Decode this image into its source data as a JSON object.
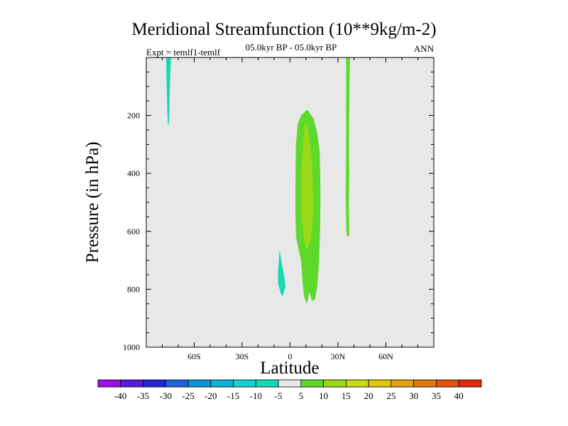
{
  "chart_data": {
    "type": "contour",
    "title": "Meridional Streamfunction (10**9kg/m-2)",
    "subtitle": "05.0kyr BP - 05.0kyr BP",
    "left_label": "Expt = temlf1-temlf",
    "right_label": "ANN",
    "xlabel": "Latitude",
    "ylabel": "Pressure (in hPa)",
    "xlim": [
      -90,
      90
    ],
    "ylim": [
      1000,
      0
    ],
    "x_ticks": [
      {
        "value": -60,
        "label": "60S"
      },
      {
        "value": -30,
        "label": "30S"
      },
      {
        "value": 0,
        "label": "0"
      },
      {
        "value": 30,
        "label": "30N"
      },
      {
        "value": 60,
        "label": "60N"
      }
    ],
    "y_ticks": [
      {
        "value": 200,
        "label": "200"
      },
      {
        "value": 400,
        "label": "400"
      },
      {
        "value": 600,
        "label": "600"
      },
      {
        "value": 800,
        "label": "800"
      },
      {
        "value": 1000,
        "label": "1000"
      }
    ],
    "background_color": "#e8e8e8",
    "colorbar": {
      "levels": [
        "-40",
        "-35",
        "-30",
        "-25",
        "-20",
        "-15",
        "-10",
        "-5",
        "5",
        "10",
        "15",
        "20",
        "25",
        "30",
        "35",
        "40"
      ],
      "colors": [
        "#9b10e0",
        "#5a1ad8",
        "#2428d0",
        "#1e64d8",
        "#0e92d6",
        "#10b2d2",
        "#18cece",
        "#1ad8b4",
        "#e8e8e8",
        "#5ed82a",
        "#9ad81a",
        "#c8d81a",
        "#e0c410",
        "#e0a210",
        "#e07a10",
        "#e05210",
        "#e02a10"
      ]
    },
    "regions": [
      {
        "name": "negative-patch-high-south",
        "level": "-10 to -5",
        "color": "#1ad8b4",
        "points": [
          [
            -77.5,
            0
          ],
          [
            -74.5,
            0
          ],
          [
            -75.0,
            60
          ],
          [
            -75.3,
            120
          ],
          [
            -75.5,
            180
          ],
          [
            -75.8,
            230
          ],
          [
            -76.3,
            235
          ],
          [
            -76.7,
            200
          ],
          [
            -77.0,
            150
          ],
          [
            -77.2,
            100
          ],
          [
            -77.4,
            50
          ]
        ]
      },
      {
        "name": "negative-patch-low-south",
        "level": "-10 to -5",
        "color": "#1ad8b4",
        "points": [
          [
            -6.6,
            665
          ],
          [
            -5.5,
            700
          ],
          [
            -3.5,
            760
          ],
          [
            -2.8,
            790
          ],
          [
            -4.7,
            825
          ],
          [
            -6.1,
            810
          ],
          [
            -7.5,
            780
          ],
          [
            -7.5,
            740
          ],
          [
            -7.0,
            700
          ]
        ]
      },
      {
        "name": "positive-cell-outer",
        "level": "5 to 10",
        "color": "#5ed82a",
        "points": [
          [
            10.8,
            180
          ],
          [
            14.6,
            210
          ],
          [
            17.0,
            260
          ],
          [
            18.5,
            320
          ],
          [
            18.9,
            400
          ],
          [
            19.0,
            480
          ],
          [
            18.9,
            560
          ],
          [
            18.6,
            640
          ],
          [
            18.0,
            720
          ],
          [
            17.0,
            790
          ],
          [
            15.7,
            835
          ],
          [
            13.8,
            840
          ],
          [
            12.0,
            810
          ],
          [
            10.6,
            850
          ],
          [
            9.0,
            830
          ],
          [
            7.9,
            780
          ],
          [
            6.9,
            700
          ],
          [
            3.8,
            620
          ],
          [
            3.4,
            540
          ],
          [
            3.4,
            460
          ],
          [
            3.5,
            380
          ],
          [
            3.7,
            300
          ],
          [
            4.8,
            230
          ],
          [
            6.9,
            200
          ]
        ]
      },
      {
        "name": "positive-cell-inner",
        "level": "10 to 15",
        "color": "#9ad81a",
        "points": [
          [
            9.7,
            220
          ],
          [
            11.7,
            260
          ],
          [
            13.2,
            320
          ],
          [
            14.1,
            400
          ],
          [
            14.5,
            480
          ],
          [
            14.4,
            560
          ],
          [
            13.3,
            620
          ],
          [
            11.9,
            650
          ],
          [
            10.0,
            665
          ],
          [
            9.0,
            640
          ],
          [
            7.3,
            560
          ],
          [
            7.0,
            480
          ],
          [
            7.1,
            400
          ],
          [
            7.8,
            320
          ],
          [
            8.6,
            260
          ]
        ]
      },
      {
        "name": "positive-strip-north",
        "level": "5 to 10",
        "color": "#5ed82a",
        "points": [
          [
            35.1,
            0
          ],
          [
            37.5,
            0
          ],
          [
            37.2,
            100
          ],
          [
            37.0,
            200
          ],
          [
            36.9,
            300
          ],
          [
            37.0,
            400
          ],
          [
            36.8,
            500
          ],
          [
            37.0,
            600
          ],
          [
            37.0,
            615
          ],
          [
            36.0,
            620
          ],
          [
            35.3,
            605
          ],
          [
            34.9,
            500
          ],
          [
            35.0,
            400
          ],
          [
            35.1,
            300
          ],
          [
            35.1,
            200
          ],
          [
            35.2,
            100
          ]
        ]
      }
    ]
  }
}
